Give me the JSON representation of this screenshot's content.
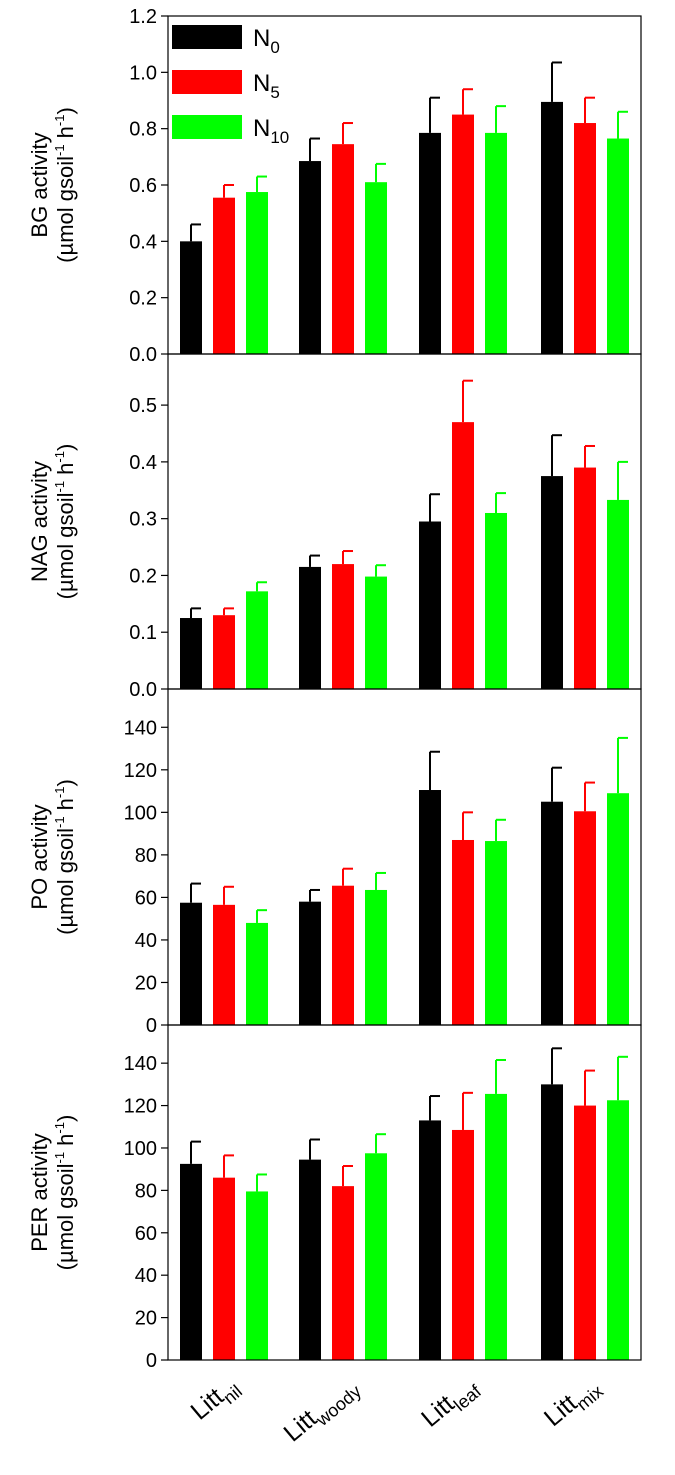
{
  "chart_data": {
    "type": "bar",
    "categories": [
      {
        "base": "Litt",
        "sub": "nil"
      },
      {
        "base": "Litt",
        "sub": "woody"
      },
      {
        "base": "Litt",
        "sub": "leaf"
      },
      {
        "base": "Litt",
        "sub": "mix"
      }
    ],
    "legend": {
      "placement": "top-left",
      "entries": [
        {
          "base": "N",
          "sub": "0",
          "color": "#000000"
        },
        {
          "base": "N",
          "sub": "5",
          "color": "#ff0000"
        },
        {
          "base": "N",
          "sub": "10",
          "color": "#00ff00"
        }
      ]
    },
    "panels": [
      {
        "ylabel_line1": "BG activity",
        "ylabel_unit": "(µmol gsoil",
        "ylabel_exp1": "-1",
        "ylabel_mid": " h",
        "ylabel_exp2": "-1",
        "ylabel_end": ")",
        "ylim": [
          0,
          1.2
        ],
        "ticks": [
          "0.0",
          "0.2",
          "0.4",
          "0.6",
          "0.8",
          "1.0",
          "1.2"
        ],
        "tick_values": [
          0,
          0.2,
          0.4,
          0.6,
          0.8,
          1.0,
          1.2
        ],
        "series": [
          {
            "name": "N0",
            "values": [
              0.4,
              0.685,
              0.785,
              0.895
            ],
            "errors": [
              0.06,
              0.08,
              0.125,
              0.14
            ]
          },
          {
            "name": "N5",
            "values": [
              0.555,
              0.745,
              0.85,
              0.82
            ],
            "errors": [
              0.045,
              0.075,
              0.09,
              0.09
            ]
          },
          {
            "name": "N10",
            "values": [
              0.575,
              0.61,
              0.785,
              0.765
            ],
            "errors": [
              0.055,
              0.065,
              0.095,
              0.095
            ]
          }
        ]
      },
      {
        "ylabel_line1": "NAG activity",
        "ylabel_unit": "(µmol gsoil",
        "ylabel_exp1": "-1",
        "ylabel_mid": " h",
        "ylabel_exp2": "-1",
        "ylabel_end": ")",
        "ylim": [
          0,
          0.59
        ],
        "ticks": [
          "0.0",
          "0.1",
          "0.2",
          "0.3",
          "0.4",
          "0.5"
        ],
        "tick_values": [
          0,
          0.1,
          0.2,
          0.3,
          0.4,
          0.5
        ],
        "series": [
          {
            "name": "N0",
            "values": [
              0.125,
              0.215,
              0.295,
              0.375
            ],
            "errors": [
              0.017,
              0.02,
              0.048,
              0.072
            ]
          },
          {
            "name": "N5",
            "values": [
              0.13,
              0.22,
              0.47,
              0.39
            ],
            "errors": [
              0.012,
              0.023,
              0.073,
              0.038
            ]
          },
          {
            "name": "N10",
            "values": [
              0.172,
              0.198,
              0.31,
              0.333
            ],
            "errors": [
              0.016,
              0.02,
              0.035,
              0.067
            ]
          }
        ]
      },
      {
        "ylabel_line1": "PO activity",
        "ylabel_unit": "(µmol gsoil",
        "ylabel_exp1": "-1",
        "ylabel_mid": " h",
        "ylabel_exp2": "-1",
        "ylabel_end": ")",
        "ylim": [
          0,
          158
        ],
        "ticks": [
          "0",
          "20",
          "40",
          "60",
          "80",
          "100",
          "120",
          "140"
        ],
        "tick_values": [
          0,
          20,
          40,
          60,
          80,
          100,
          120,
          140
        ],
        "series": [
          {
            "name": "N0",
            "values": [
              57.5,
              58,
              110.5,
              105
            ],
            "errors": [
              9,
              5.5,
              18,
              16
            ]
          },
          {
            "name": "N5",
            "values": [
              56.5,
              65.5,
              87,
              100.5
            ],
            "errors": [
              8.5,
              8,
              13,
              13.5
            ]
          },
          {
            "name": "N10",
            "values": [
              48,
              63.5,
              86.5,
              109
            ],
            "errors": [
              6,
              8,
              10,
              26
            ]
          }
        ]
      },
      {
        "ylabel_line1": "PER activity",
        "ylabel_unit": "(µmol gsoil",
        "ylabel_exp1": "-1",
        "ylabel_mid": " h",
        "ylabel_exp2": "-1",
        "ylabel_end": ")",
        "ylim": [
          0,
          158
        ],
        "ticks": [
          "0",
          "20",
          "40",
          "60",
          "80",
          "100",
          "120",
          "140"
        ],
        "tick_values": [
          0,
          20,
          40,
          60,
          80,
          100,
          120,
          140
        ],
        "series": [
          {
            "name": "N0",
            "values": [
              92.5,
              94.5,
              113,
              130
            ],
            "errors": [
              10.5,
              9.5,
              11.5,
              17
            ]
          },
          {
            "name": "N5",
            "values": [
              86,
              82,
              108.5,
              120
            ],
            "errors": [
              10.5,
              9.5,
              17.5,
              16.5
            ]
          },
          {
            "name": "N10",
            "values": [
              79.5,
              97.5,
              125.5,
              122.5
            ],
            "errors": [
              8,
              9,
              16,
              20.5
            ]
          }
        ]
      }
    ]
  }
}
